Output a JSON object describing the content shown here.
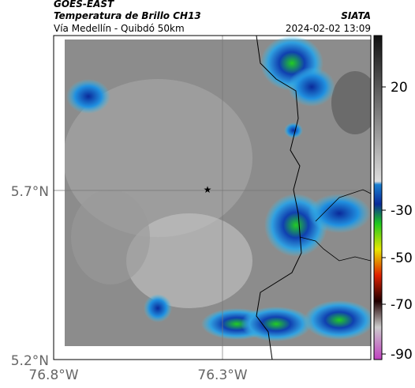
{
  "header": {
    "satellite": "GOES-EAST",
    "product": "Temperatura de Brillo CH13",
    "source": "SIATA",
    "region": "Vía Medellín - Quibdó 50km",
    "datetime": "2024-02-02 13:09"
  },
  "axes": {
    "y_labels": [
      "5.7°N",
      "5.2°N"
    ],
    "x_labels": [
      "76.8°W",
      "76.3°W"
    ]
  },
  "colorbar": {
    "ticks": [
      20,
      -30,
      -50,
      -70,
      -90
    ]
  }
}
